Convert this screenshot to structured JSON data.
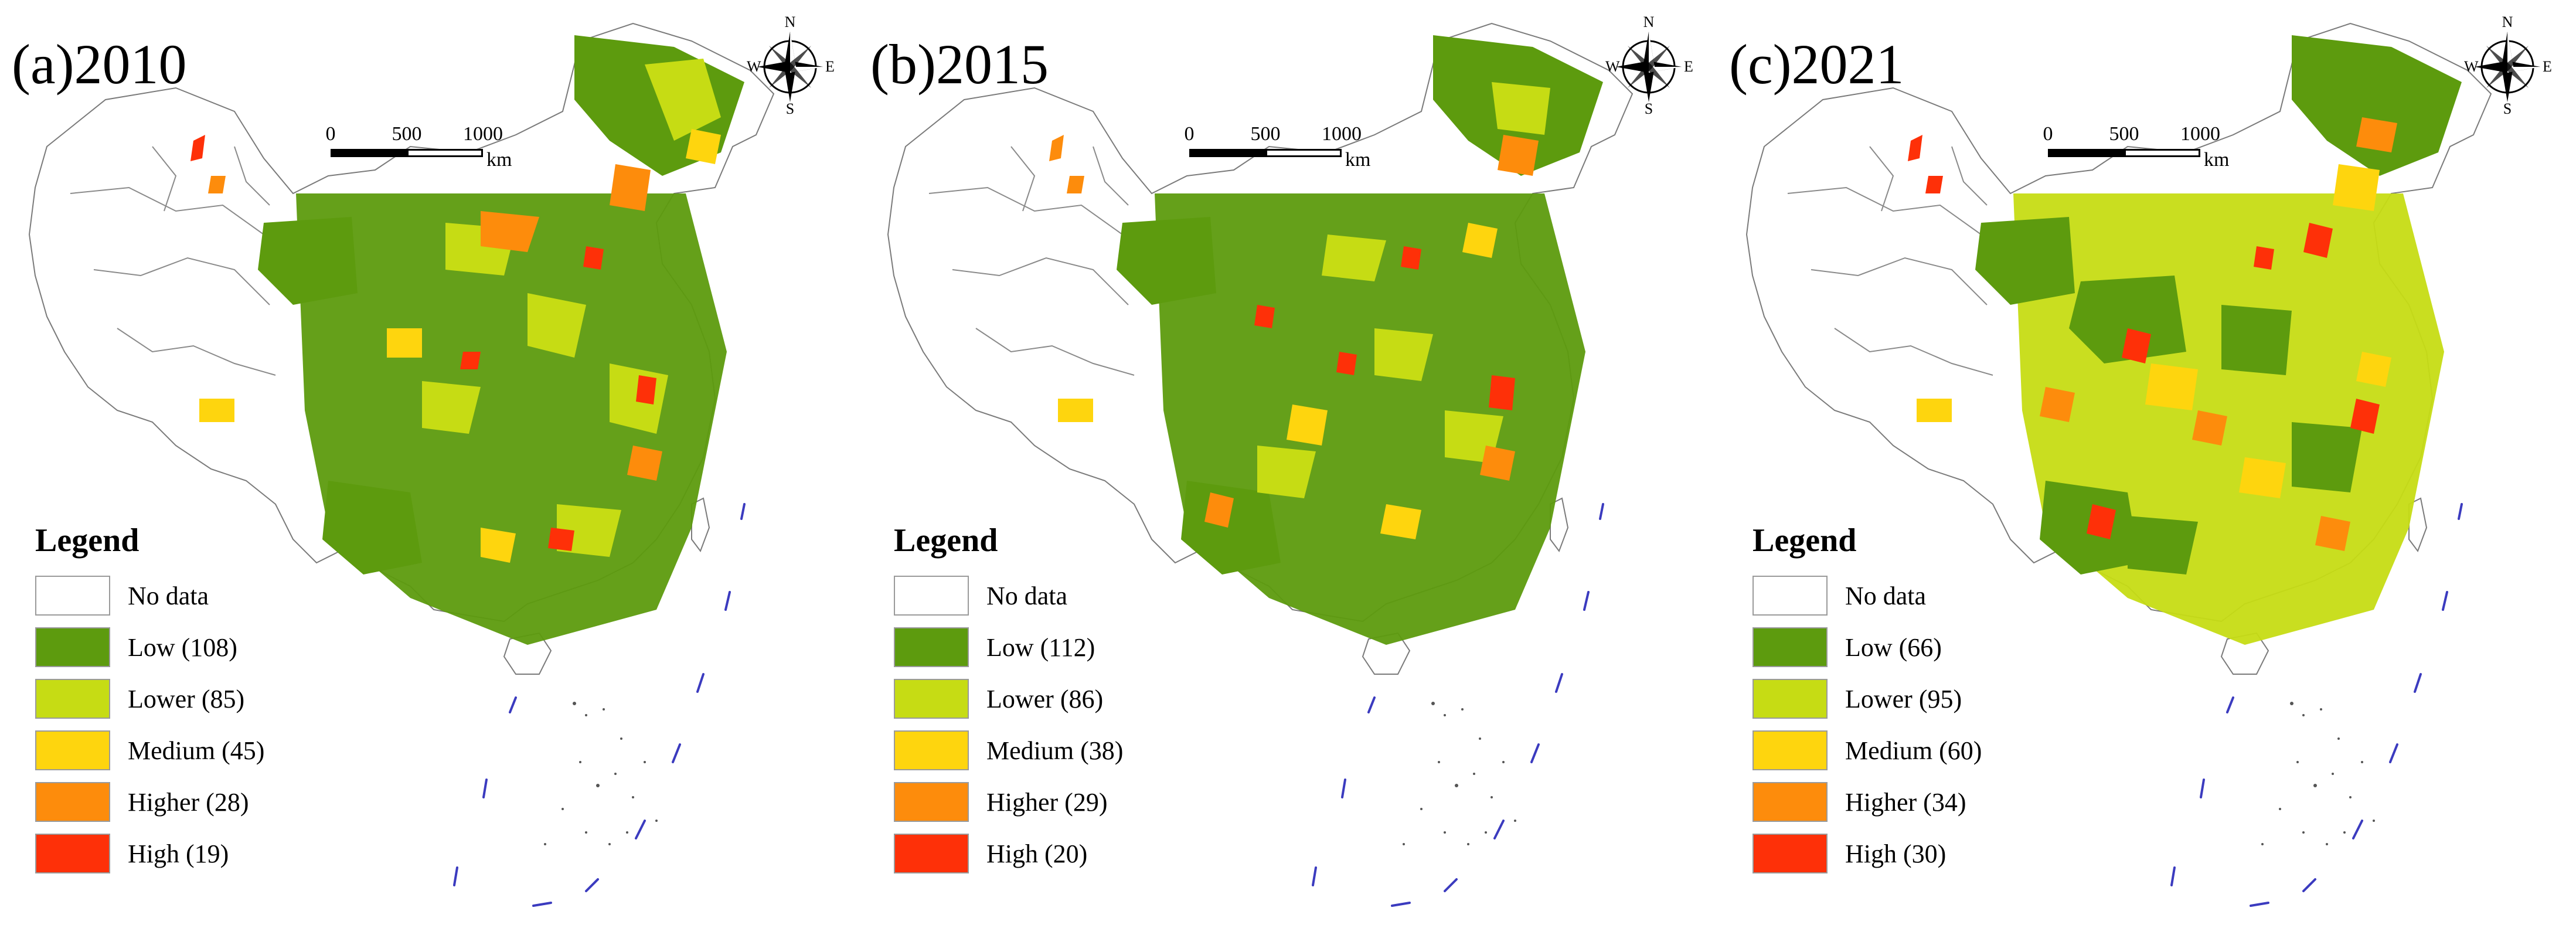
{
  "panels": [
    {
      "title": "(a)2010",
      "legend": {
        "title": "Legend",
        "items": [
          {
            "label": "No data",
            "color": "#ffffff"
          },
          {
            "label": "Low (108)",
            "color": "#5d9b0e"
          },
          {
            "label": "Lower (85)",
            "color": "#c6dc14"
          },
          {
            "label": "Medium (45)",
            "color": "#fed50e"
          },
          {
            "label": "Higher (28)",
            "color": "#fd8c0c"
          },
          {
            "label": "High (19)",
            "color": "#fe3008"
          }
        ]
      }
    },
    {
      "title": "(b)2015",
      "legend": {
        "title": "Legend",
        "items": [
          {
            "label": "No data",
            "color": "#ffffff"
          },
          {
            "label": "Low (112)",
            "color": "#5d9b0e"
          },
          {
            "label": "Lower (86)",
            "color": "#c6dc14"
          },
          {
            "label": "Medium (38)",
            "color": "#fed50e"
          },
          {
            "label": "Higher (29)",
            "color": "#fd8c0c"
          },
          {
            "label": "High (20)",
            "color": "#fe3008"
          }
        ]
      }
    },
    {
      "title": "(c)2021",
      "legend": {
        "title": "Legend",
        "items": [
          {
            "label": "No data",
            "color": "#ffffff"
          },
          {
            "label": "Low (66)",
            "color": "#5d9b0e"
          },
          {
            "label": "Lower (95)",
            "color": "#c6dc14"
          },
          {
            "label": "Medium (60)",
            "color": "#fed50e"
          },
          {
            "label": "Higher (34)",
            "color": "#fd8c0c"
          },
          {
            "label": "High (30)",
            "color": "#fe3008"
          }
        ]
      }
    }
  ],
  "scale_bar": {
    "ticks": [
      "0",
      "500",
      "1000"
    ],
    "unit": "km"
  },
  "compass": {
    "n": "N",
    "s": "S",
    "e": "E",
    "w": "W"
  }
}
